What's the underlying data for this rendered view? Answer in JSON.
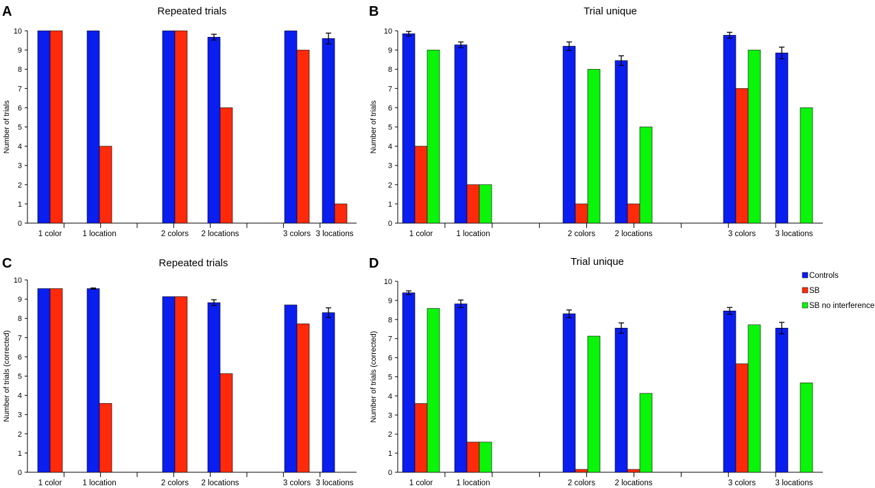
{
  "figure": {
    "legend": {
      "items": [
        {
          "name": "Controls",
          "color": "#0A1EF0"
        },
        {
          "name": "SB",
          "color": "#FF2A0A"
        },
        {
          "name": "SB no interference",
          "color": "#0AF50A"
        }
      ]
    }
  },
  "chart_data": [
    {
      "panel": "A",
      "type": "bar",
      "title": "Repeated trials",
      "ylabel": "Number of trials",
      "xlabel": "",
      "ylim": [
        0,
        10
      ],
      "yticks": [
        "0",
        "1",
        "2",
        "3",
        "4",
        "5",
        "6",
        "7",
        "8",
        "9",
        "10"
      ],
      "categories": [
        "1 color",
        "1 location",
        "2 colors",
        "2 locations",
        "3 colors",
        "3 locations"
      ],
      "series": [
        {
          "name": "Controls",
          "values": [
            10,
            10,
            10,
            9.67,
            10,
            9.6
          ],
          "errors": [
            0,
            0,
            0,
            0.15,
            0,
            0.28
          ]
        },
        {
          "name": "SB",
          "values": [
            10,
            4,
            10,
            6,
            9,
            1
          ]
        }
      ]
    },
    {
      "panel": "B",
      "type": "bar",
      "title": "Trial unique",
      "ylabel": "Number of trials",
      "xlabel": "",
      "ylim": [
        0,
        10
      ],
      "yticks": [
        "0",
        "1",
        "2",
        "3",
        "4",
        "5",
        "6",
        "7",
        "8",
        "9",
        "10"
      ],
      "categories": [
        "1 color",
        "1 location",
        "2 colors",
        "2 locations",
        "3 colors",
        "3 locations"
      ],
      "series": [
        {
          "name": "Controls",
          "values": [
            9.85,
            9.27,
            9.2,
            8.45,
            9.77,
            8.85
          ],
          "errors": [
            0.12,
            0.15,
            0.22,
            0.25,
            0.15,
            0.3
          ]
        },
        {
          "name": "SB",
          "values": [
            4,
            2,
            1,
            1,
            7,
            null
          ]
        },
        {
          "name": "SB no interference",
          "values": [
            9,
            2,
            8,
            5,
            9,
            6
          ]
        }
      ]
    },
    {
      "panel": "C",
      "type": "bar",
      "title": "Repeated trials",
      "ylabel": "Number of trials (corrected)",
      "xlabel": "",
      "ylim": [
        0,
        10
      ],
      "yticks": [
        "0",
        "1",
        "2",
        "3",
        "4",
        "5",
        "6",
        "7",
        "8",
        "9",
        "10"
      ],
      "categories": [
        "1 color",
        "1 location",
        "2 colors",
        "2 locations",
        "3 colors",
        "3 locations"
      ],
      "series": [
        {
          "name": "Controls",
          "values": [
            9.55,
            9.55,
            9.13,
            8.82,
            8.7,
            8.3
          ],
          "errors": [
            0,
            0.03,
            0,
            0.15,
            0,
            0.25
          ]
        },
        {
          "name": "SB",
          "values": [
            9.55,
            3.58,
            9.13,
            5.13,
            7.72,
            null
          ]
        }
      ]
    },
    {
      "panel": "D",
      "type": "bar",
      "title": "Trial unique",
      "ylabel": "Number of trials (corrected)",
      "xlabel": "",
      "ylim": [
        0,
        10
      ],
      "yticks": [
        "0",
        "1",
        "2",
        "3",
        "4",
        "5",
        "6",
        "7",
        "8",
        "9",
        "10"
      ],
      "categories": [
        "1 color",
        "1 location",
        "2 colors",
        "2 locations",
        "3 colors",
        "3 locations"
      ],
      "series": [
        {
          "name": "Controls",
          "values": [
            9.4,
            8.82,
            8.3,
            7.55,
            8.45,
            7.55
          ],
          "errors": [
            0.1,
            0.2,
            0.2,
            0.27,
            0.18,
            0.3
          ]
        },
        {
          "name": "SB",
          "values": [
            3.6,
            1.58,
            0.15,
            0.15,
            5.68,
            null
          ]
        },
        {
          "name": "SB no interference",
          "values": [
            8.58,
            1.58,
            7.13,
            4.13,
            7.72,
            4.68
          ]
        }
      ]
    }
  ]
}
